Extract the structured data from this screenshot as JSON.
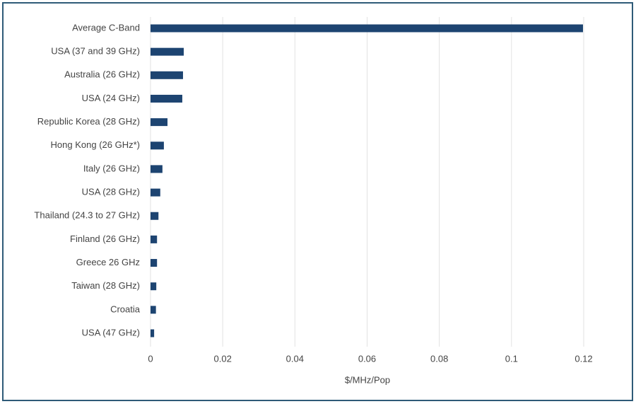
{
  "chart_data": {
    "type": "hbar",
    "categories": [
      "Average C-Band",
      "USA (37 and 39 GHz)",
      "Australia (26 GHz)",
      "USA (24 GHz)",
      "Republic Korea (28 GHz)",
      "Hong Kong (26 GHz*)",
      "Italy (26 GHz)",
      "USA (28 GHz)",
      "Thailand (24.3 to 27 GHz)",
      "Finland (26 GHz)",
      "Greece 26 GHz",
      "Taiwan (28 GHz)",
      "Croatia",
      "USA (47 GHz)"
    ],
    "values": [
      0.1198,
      0.0092,
      0.009,
      0.0088,
      0.0047,
      0.0037,
      0.0033,
      0.0027,
      0.0022,
      0.0018,
      0.0018,
      0.0016,
      0.0015,
      0.001
    ],
    "color": "#1d4471",
    "xlabel": "$/MHz/Pop",
    "xlim": [
      0,
      0.12
    ],
    "xticks": [
      0,
      0.02,
      0.04,
      0.06,
      0.08,
      0.1,
      0.12
    ],
    "grid": true
  }
}
